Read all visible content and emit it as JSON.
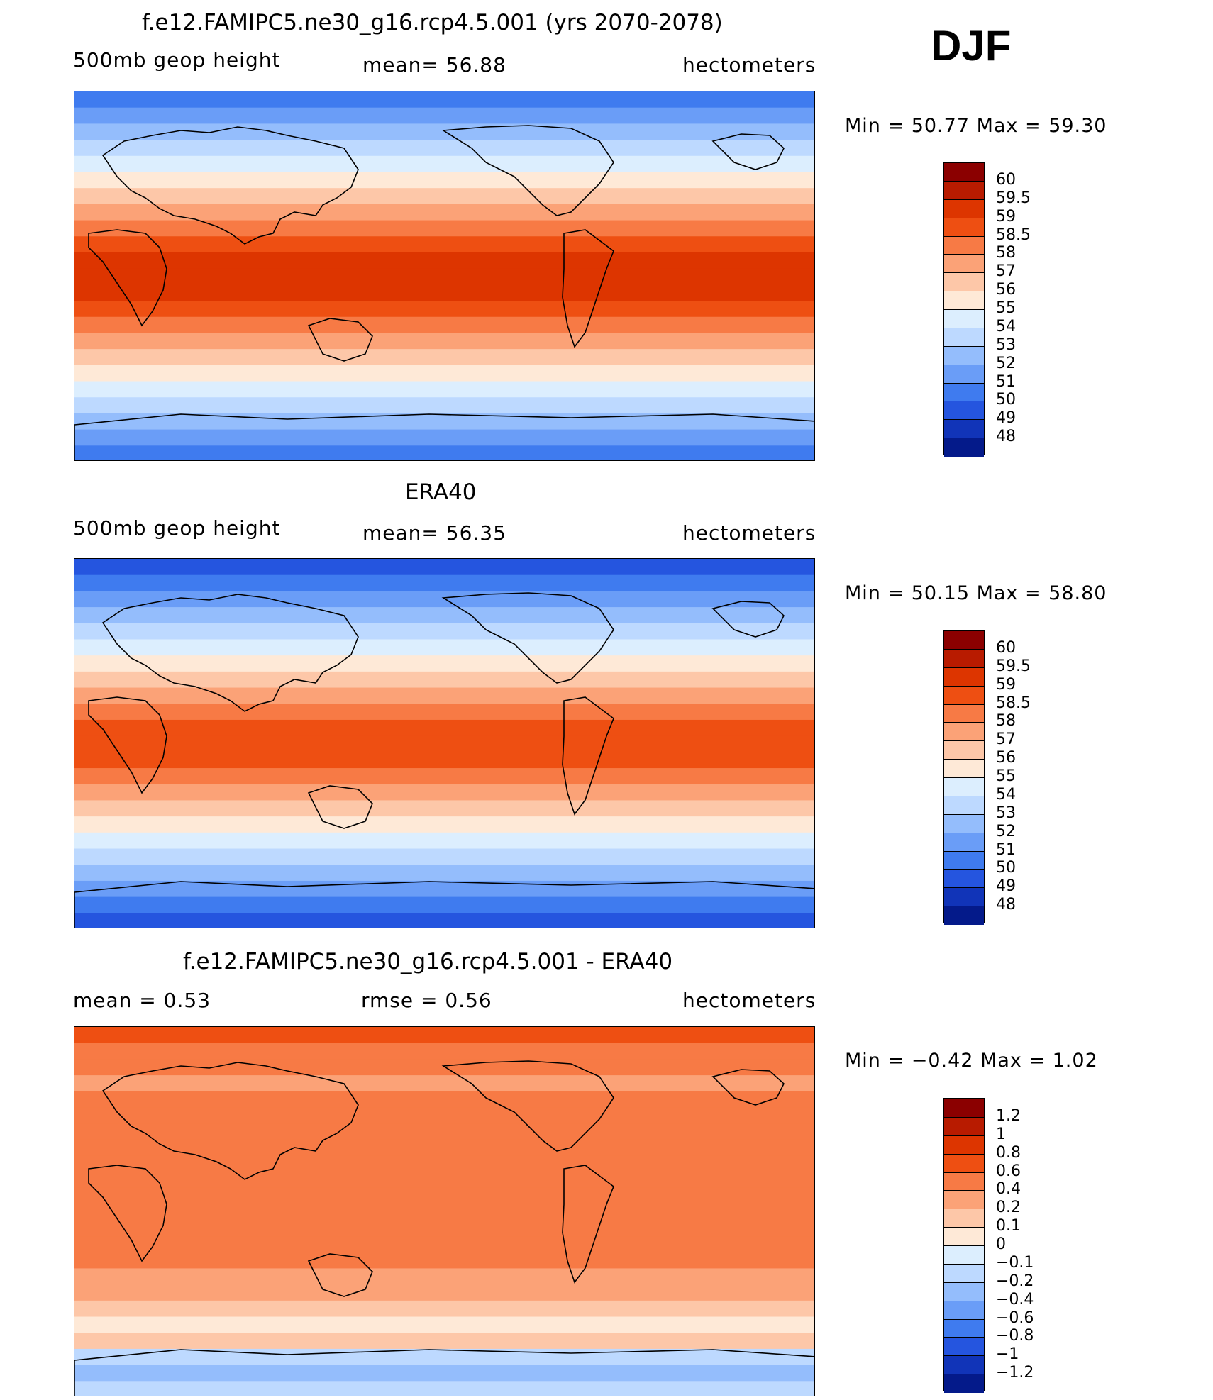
{
  "season": "DJF",
  "panels": [
    {
      "id": "model",
      "title": "f.e12.FAMIPC5.ne30_g16.rcp4.5.001 (yrs 2070-2078)",
      "left_label": "500mb  geop  height",
      "center_label": "mean=   56.88",
      "right_label": "hectometers",
      "min_max": "Min  =    50.77  Max  =    59.30",
      "colorbar_labels": [
        "60",
        "59.5",
        "59",
        "58.5",
        "58",
        "57",
        "56",
        "55",
        "54",
        "53",
        "52",
        "51",
        "50",
        "49",
        "48"
      ],
      "colorbar_colors": [
        "#8b0000",
        "#b81b00",
        "#dd3500",
        "#ee4f12",
        "#f77a45",
        "#fba277",
        "#fdc7a8",
        "#fee9d7",
        "#dceefe",
        "#bdd9ff",
        "#94bdfc",
        "#6a9df7",
        "#3f7bef",
        "#2555df",
        "#1134b8",
        "#041a8a"
      ],
      "bands": [
        "#3f7bef",
        "#6a9df7",
        "#94bdfc",
        "#bdd9ff",
        "#dceefe",
        "#fee9d7",
        "#fdc7a8",
        "#fba277",
        "#f77a45",
        "#ee4f12",
        "#dd3500",
        "#dd3500",
        "#dd3500",
        "#ee4f12",
        "#f77a45",
        "#fba277",
        "#fdc7a8",
        "#fee9d7",
        "#dceefe",
        "#bdd9ff",
        "#94bdfc",
        "#6a9df7",
        "#3f7bef"
      ]
    },
    {
      "id": "obs",
      "title": "ERA40",
      "left_label": "500mb  geop  height",
      "center_label": "mean=   56.35",
      "right_label": "hectometers",
      "min_max": "Min  =    50.15  Max  =    58.80",
      "colorbar_labels": [
        "60",
        "59.5",
        "59",
        "58.5",
        "58",
        "57",
        "56",
        "55",
        "54",
        "53",
        "52",
        "51",
        "50",
        "49",
        "48"
      ],
      "colorbar_colors": [
        "#8b0000",
        "#b81b00",
        "#dd3500",
        "#ee4f12",
        "#f77a45",
        "#fba277",
        "#fdc7a8",
        "#fee9d7",
        "#dceefe",
        "#bdd9ff",
        "#94bdfc",
        "#6a9df7",
        "#3f7bef",
        "#2555df",
        "#1134b8",
        "#041a8a"
      ],
      "bands": [
        "#2555df",
        "#3f7bef",
        "#6a9df7",
        "#94bdfc",
        "#bdd9ff",
        "#dceefe",
        "#fee9d7",
        "#fdc7a8",
        "#fba277",
        "#f77a45",
        "#ee4f12",
        "#ee4f12",
        "#ee4f12",
        "#f77a45",
        "#fba277",
        "#fdc7a8",
        "#fee9d7",
        "#dceefe",
        "#bdd9ff",
        "#94bdfc",
        "#6a9df7",
        "#3f7bef",
        "#2555df"
      ]
    },
    {
      "id": "diff",
      "title": "f.e12.FAMIPC5.ne30_g16.rcp4.5.001 - ERA40",
      "left_label": "mean  =     0.53",
      "center_label": "rmse  =     0.56",
      "right_label": "hectometers",
      "min_max": "Min  =    −0.42  Max  =      1.02",
      "colorbar_labels": [
        "1.2",
        "1",
        "0.8",
        "0.6",
        "0.4",
        "0.2",
        "0.1",
        "0",
        "−0.1",
        "−0.2",
        "−0.4",
        "−0.6",
        "−0.8",
        "−1",
        "−1.2"
      ],
      "colorbar_colors": [
        "#8b0000",
        "#b81b00",
        "#dd3500",
        "#ee4f12",
        "#f77a45",
        "#fba277",
        "#fdc7a8",
        "#fee9d7",
        "#dceefe",
        "#bdd9ff",
        "#94bdfc",
        "#6a9df7",
        "#3f7bef",
        "#2555df",
        "#1134b8",
        "#041a8a"
      ],
      "bands": [
        "#ee4f12",
        "#f77a45",
        "#f77a45",
        "#fba277",
        "#f77a45",
        "#f77a45",
        "#f77a45",
        "#f77a45",
        "#f77a45",
        "#f77a45",
        "#f77a45",
        "#f77a45",
        "#f77a45",
        "#f77a45",
        "#f77a45",
        "#fba277",
        "#fba277",
        "#fdc7a8",
        "#fee9d7",
        "#fdc7a8",
        "#bdd9ff",
        "#94bdfc",
        "#bdd9ff"
      ]
    }
  ]
}
